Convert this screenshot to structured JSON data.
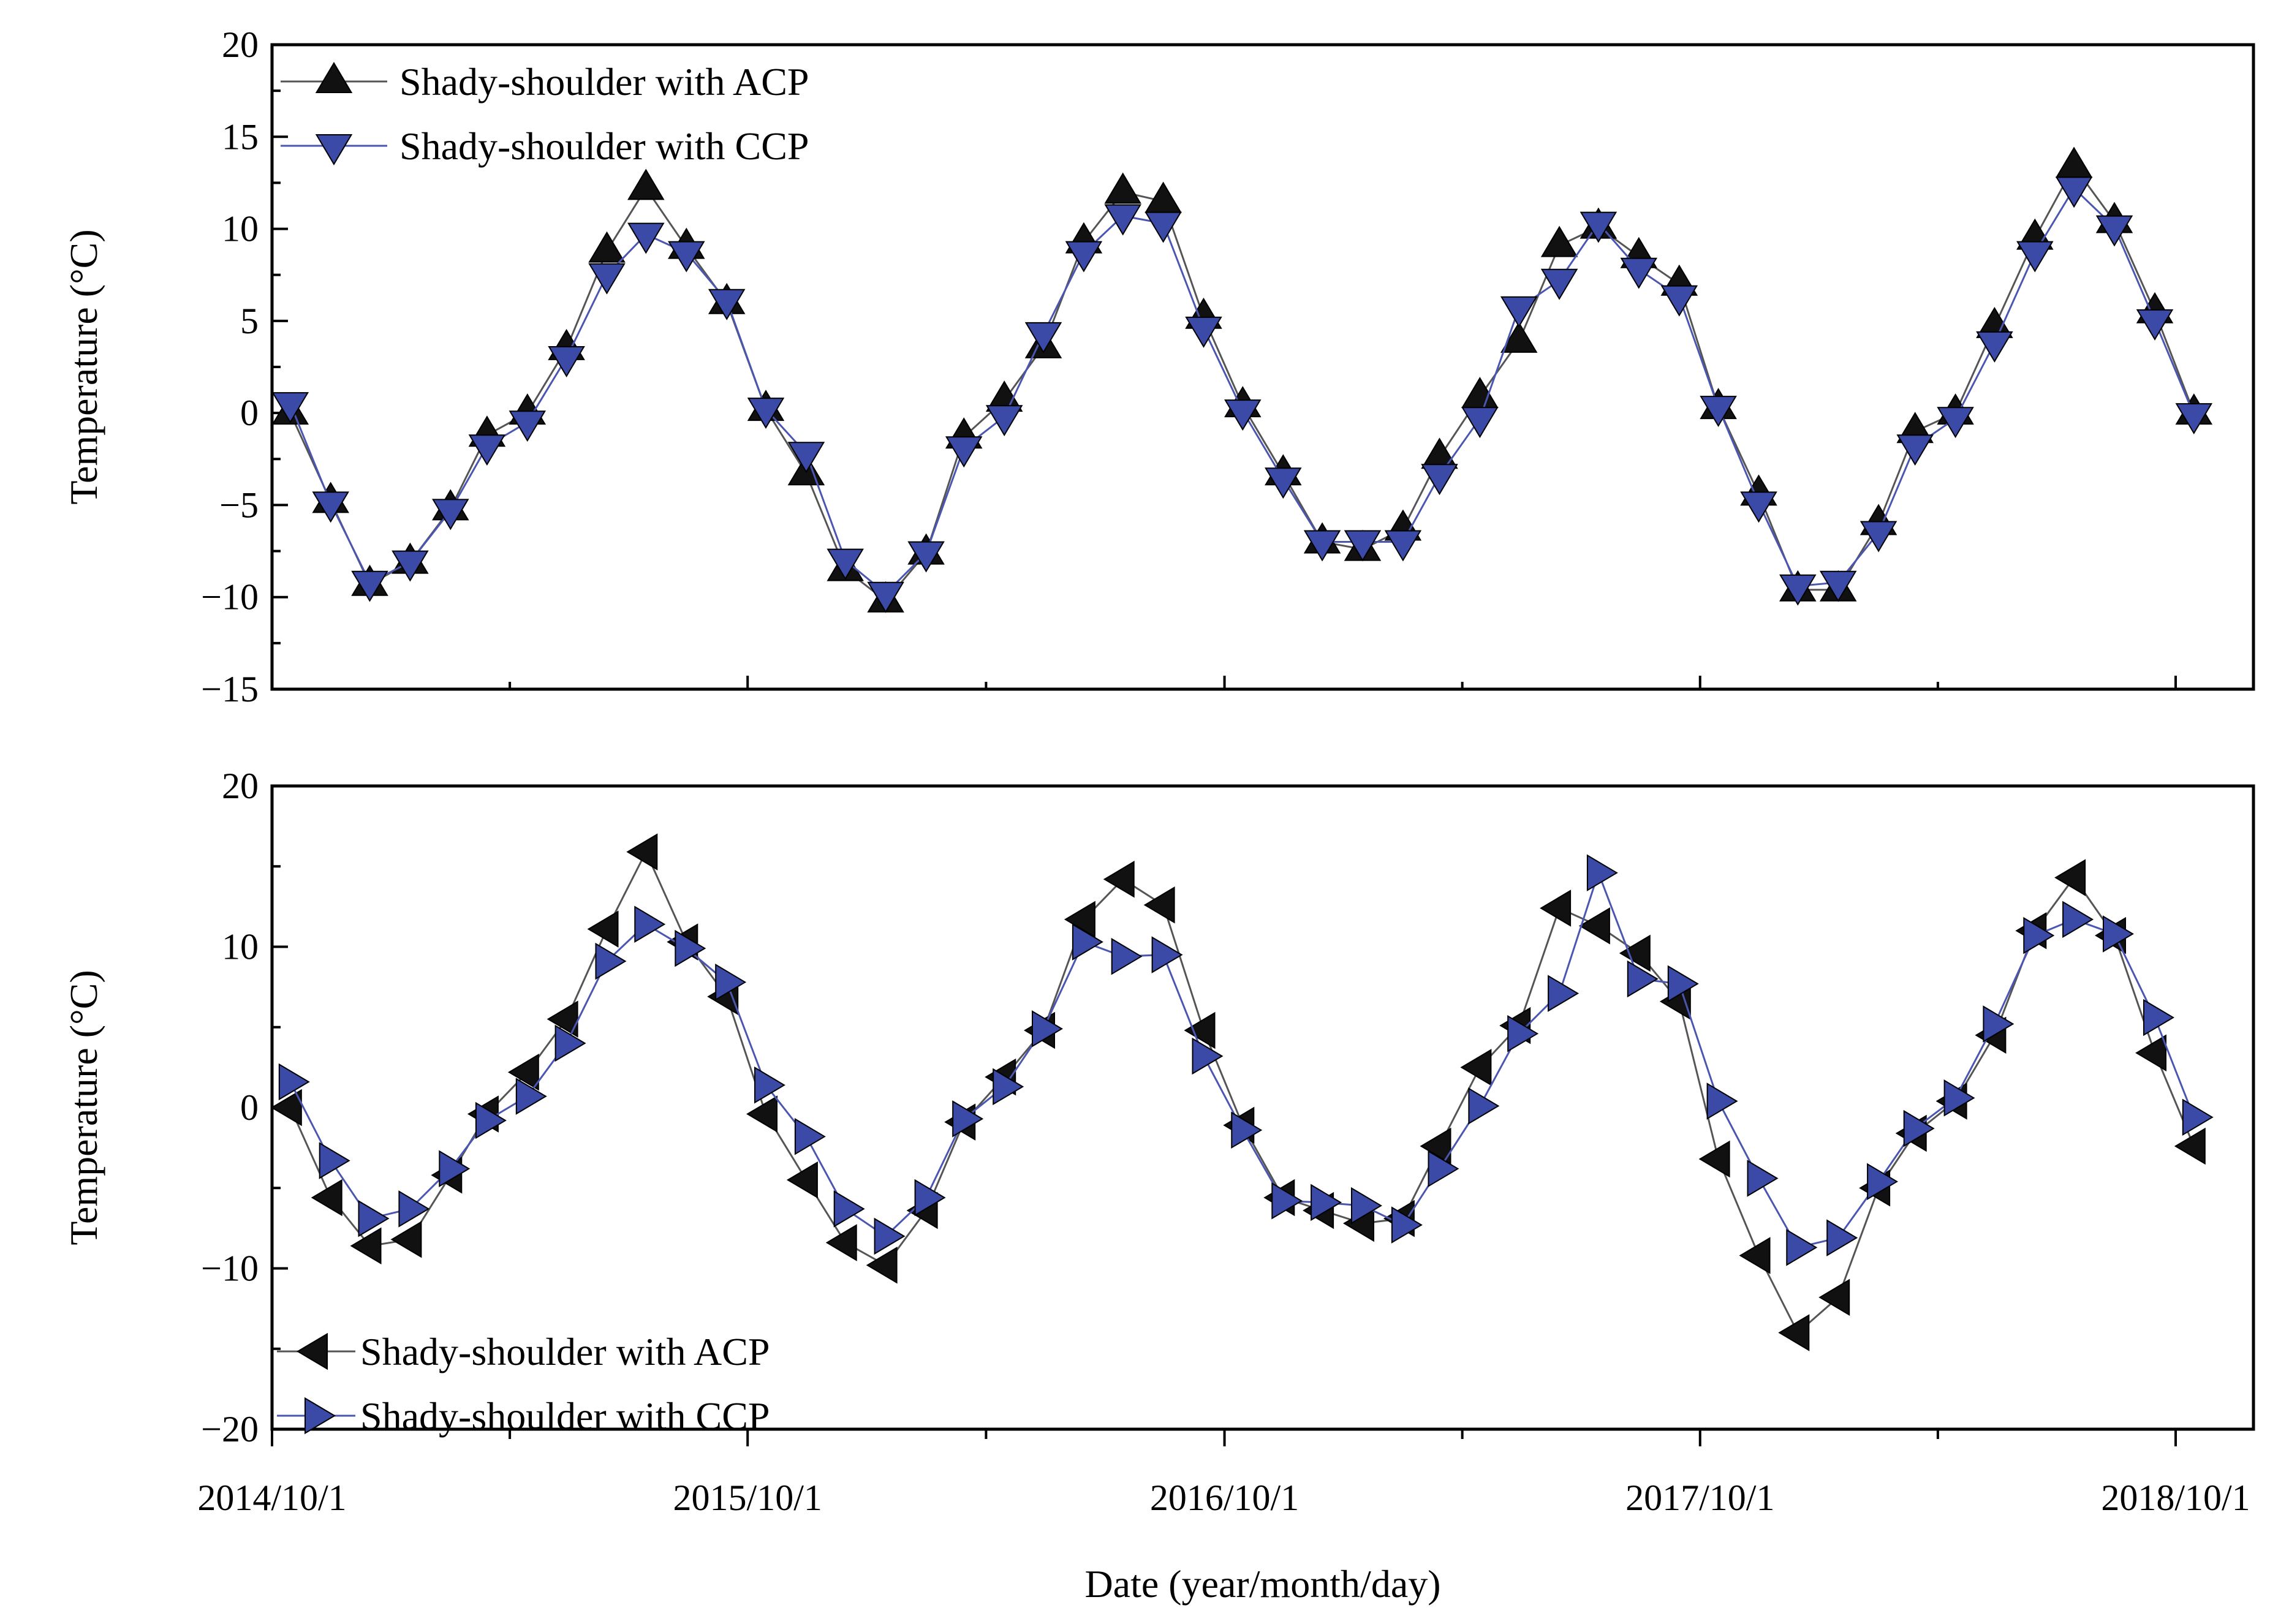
{
  "colors": {
    "acp": "#111111",
    "ccp": "#3a4aa6",
    "acp_line": "#555555",
    "ccp_line": "#4a56b0"
  },
  "chart_data": [
    {
      "type": "line",
      "ylabel": "Temperature (°C)",
      "ylim": [
        -15,
        20
      ],
      "yticks": [
        -15,
        -10,
        -5,
        0,
        5,
        10,
        15,
        20
      ],
      "ytick_labels": [
        "−15",
        "−10",
        "−5",
        "0",
        "5",
        "10",
        "15",
        "20"
      ],
      "legend_position": "top-left",
      "series": [
        {
          "name": "Shady-shoulder with ACP",
          "marker": "triangle-up",
          "x": [
            "2014-10-15",
            "2014-11-15",
            "2014-12-15",
            "2015-01-15",
            "2015-02-15",
            "2015-03-15",
            "2015-04-15",
            "2015-05-15",
            "2015-06-15",
            "2015-07-15",
            "2015-08-15",
            "2015-09-15",
            "2015-10-15",
            "2015-11-15",
            "2015-12-15",
            "2016-01-15",
            "2016-02-15",
            "2016-03-15",
            "2016-04-15",
            "2016-05-15",
            "2016-06-15",
            "2016-07-15",
            "2016-08-15",
            "2016-09-15",
            "2016-10-15",
            "2016-11-15",
            "2016-12-15",
            "2017-01-15",
            "2017-02-15",
            "2017-03-15",
            "2017-04-15",
            "2017-05-15",
            "2017-06-15",
            "2017-07-15",
            "2017-08-15",
            "2017-09-15",
            "2017-10-15",
            "2017-11-15",
            "2017-12-15",
            "2018-01-15",
            "2018-02-15",
            "2018-03-15",
            "2018-04-15",
            "2018-05-15",
            "2018-06-15",
            "2018-07-15",
            "2018-08-15",
            "2018-09-15",
            "2018-10-15"
          ],
          "y": [
            0,
            -4.8,
            -9.3,
            -8.1,
            -5.2,
            -1.2,
            0,
            3.5,
            8.8,
            12.2,
            9,
            6,
            0.2,
            -3.3,
            -8.5,
            -10.2,
            -7.6,
            -1.3,
            0.7,
            3.6,
            9.3,
            12,
            11.5,
            5.2,
            0.4,
            -3.3,
            -7,
            -7.4,
            -6.3,
            -2.4,
            0.9,
            3.9,
            9.1,
            10.1,
            8.5,
            7,
            0.3,
            -4.4,
            -9.6,
            -9.6,
            -6,
            -1,
            0,
            4.7,
            9.5,
            13.4,
            10.4,
            5.5,
            0
          ]
        },
        {
          "name": "Shady-shoulder with CCP",
          "marker": "triangle-down",
          "x": [
            "2014-10-15",
            "2014-11-15",
            "2014-12-15",
            "2015-01-15",
            "2015-02-15",
            "2015-03-15",
            "2015-04-15",
            "2015-05-15",
            "2015-06-15",
            "2015-07-15",
            "2015-08-15",
            "2015-09-15",
            "2015-10-15",
            "2015-11-15",
            "2015-12-15",
            "2016-01-15",
            "2016-02-15",
            "2016-03-15",
            "2016-04-15",
            "2016-05-15",
            "2016-06-15",
            "2016-07-15",
            "2016-08-15",
            "2016-09-15",
            "2016-10-15",
            "2016-11-15",
            "2016-12-15",
            "2017-01-15",
            "2017-02-15",
            "2017-03-15",
            "2017-04-15",
            "2017-05-15",
            "2017-06-15",
            "2017-07-15",
            "2017-08-15",
            "2017-09-15",
            "2017-10-15",
            "2017-11-15",
            "2017-12-15",
            "2018-01-15",
            "2018-02-15",
            "2018-03-15",
            "2018-04-15",
            "2018-05-15",
            "2018-06-15",
            "2018-07-15",
            "2018-08-15",
            "2018-09-15",
            "2018-10-15"
          ],
          "y": [
            0.5,
            -4.9,
            -9.2,
            -8.1,
            -5.3,
            -1.8,
            -0.5,
            3,
            7.5,
            9.7,
            8.7,
            6.1,
            0.2,
            -2.2,
            -8,
            -9.8,
            -7.6,
            -1.9,
            -0.2,
            4.3,
            8.7,
            10.7,
            10.3,
            4.6,
            0.1,
            -3.6,
            -7,
            -7,
            -7,
            -3.4,
            -0.3,
            5.7,
            7.2,
            10.3,
            7.8,
            6.3,
            0.3,
            -4.9,
            -9.4,
            -9.2,
            -6.5,
            -1.8,
            -0.3,
            3.8,
            8.7,
            12.2,
            10.1,
            5,
            -0.1
          ]
        }
      ]
    },
    {
      "type": "line",
      "ylabel": "Temperature (°C)",
      "xlabel": "Date (year/month/day)",
      "ylim": [
        -20,
        20
      ],
      "yticks": [
        -20,
        -10,
        0,
        10,
        20
      ],
      "ytick_labels": [
        "−20",
        "−10",
        "0",
        "10",
        "20"
      ],
      "xticks": [
        "2014-10-01",
        "2015-10-01",
        "2016-10-01",
        "2017-10-01",
        "2018-10-01"
      ],
      "xtick_labels": [
        "2014/10/1",
        "2015/10/1",
        "2016/10/1",
        "2017/10/1",
        "2018/10/1"
      ],
      "legend_position": "bottom-left",
      "series": [
        {
          "name": "Shady-shoulder with ACP",
          "marker": "triangle-left",
          "x": [
            "2014-10-15",
            "2014-11-15",
            "2014-12-15",
            "2015-01-15",
            "2015-02-15",
            "2015-03-15",
            "2015-04-15",
            "2015-05-15",
            "2015-06-15",
            "2015-07-15",
            "2015-08-15",
            "2015-09-15",
            "2015-10-15",
            "2015-11-15",
            "2015-12-15",
            "2016-01-15",
            "2016-02-15",
            "2016-03-15",
            "2016-04-15",
            "2016-05-15",
            "2016-06-15",
            "2016-07-15",
            "2016-08-15",
            "2016-09-15",
            "2016-10-15",
            "2016-11-15",
            "2016-12-15",
            "2017-01-15",
            "2017-02-15",
            "2017-03-15",
            "2017-04-15",
            "2017-05-15",
            "2017-06-15",
            "2017-07-15",
            "2017-08-15",
            "2017-09-15",
            "2017-10-15",
            "2017-11-15",
            "2017-12-15",
            "2018-01-15",
            "2018-02-15",
            "2018-03-15",
            "2018-04-15",
            "2018-05-15",
            "2018-06-15",
            "2018-07-15",
            "2018-08-15",
            "2018-09-15",
            "2018-10-15"
          ],
          "y": [
            0,
            -5.6,
            -8.6,
            -8.2,
            -4.2,
            -0.4,
            2.2,
            5.5,
            11.1,
            15.9,
            10.3,
            6.9,
            -0.4,
            -4.5,
            -8.4,
            -9.8,
            -6.4,
            -0.9,
            1.9,
            4.8,
            11.7,
            14.2,
            12.6,
            4.8,
            -1.1,
            -5.6,
            -6.4,
            -7.2,
            -6.9,
            -2.4,
            2.5,
            5.1,
            12.4,
            11.3,
            9.6,
            6.6,
            -3.2,
            -9.2,
            -14,
            -11.8,
            -5,
            -1.6,
            0.4,
            4.5,
            11,
            14.3,
            10.7,
            3.4,
            -2.4
          ]
        },
        {
          "name": "Shady-shoulder with CCP",
          "marker": "triangle-right",
          "x": [
            "2014-10-15",
            "2014-11-15",
            "2014-12-15",
            "2015-01-15",
            "2015-02-15",
            "2015-03-15",
            "2015-04-15",
            "2015-05-15",
            "2015-06-15",
            "2015-07-15",
            "2015-08-15",
            "2015-09-15",
            "2015-10-15",
            "2015-11-15",
            "2015-12-15",
            "2016-01-15",
            "2016-02-15",
            "2016-03-15",
            "2016-04-15",
            "2016-05-15",
            "2016-06-15",
            "2016-07-15",
            "2016-08-15",
            "2016-09-15",
            "2016-10-15",
            "2016-11-15",
            "2016-12-15",
            "2017-01-15",
            "2017-02-15",
            "2017-03-15",
            "2017-04-15",
            "2017-05-15",
            "2017-06-15",
            "2017-07-15",
            "2017-08-15",
            "2017-09-15",
            "2017-10-15",
            "2017-11-15",
            "2017-12-15",
            "2018-01-15",
            "2018-02-15",
            "2018-03-15",
            "2018-04-15",
            "2018-05-15",
            "2018-06-15",
            "2018-07-15",
            "2018-08-15",
            "2018-09-15",
            "2018-10-15"
          ],
          "y": [
            1.6,
            -3.3,
            -6.9,
            -6.3,
            -3.8,
            -0.8,
            0.7,
            4,
            9.1,
            11.4,
            9.9,
            7.8,
            1.4,
            -1.8,
            -6.3,
            -8,
            -5.6,
            -0.7,
            1.3,
            4.9,
            10.3,
            9.4,
            9.5,
            3.2,
            -1.4,
            -5.8,
            -5.9,
            -6.1,
            -7.3,
            -3.8,
            0.1,
            4.6,
            7.1,
            14.6,
            8,
            7.7,
            0.4,
            -4.4,
            -8.7,
            -8.1,
            -4.6,
            -1.3,
            0.6,
            5.2,
            10.7,
            11.7,
            10.8,
            5.6,
            -0.6
          ]
        }
      ]
    }
  ]
}
